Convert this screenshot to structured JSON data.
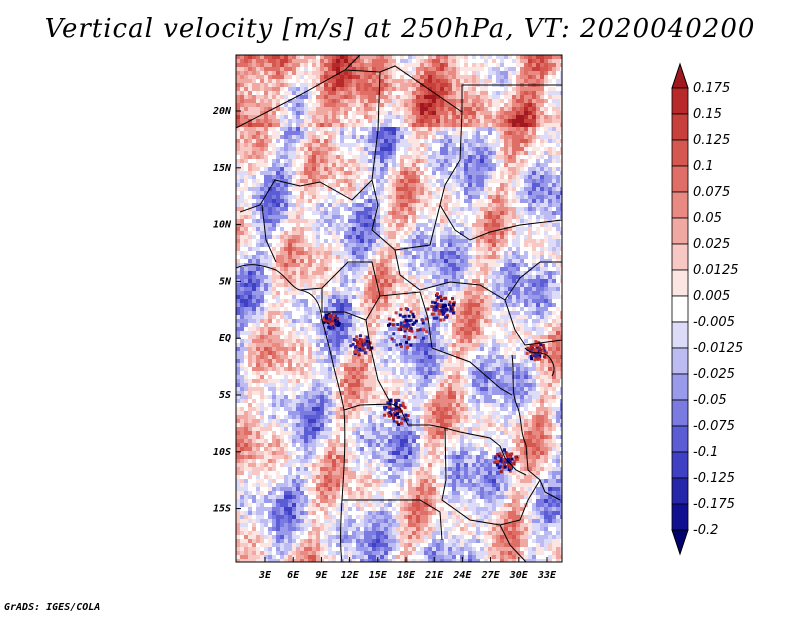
{
  "title": "Vertical velocity [m/s] at 250hPa, VT: 2020040200",
  "credit": "GrADS: IGES/COLA",
  "map": {
    "variable": "Vertical velocity",
    "units": "m/s",
    "level": "250hPa",
    "valid_time": "2020040200",
    "lat_labels": [
      "20N",
      "15N",
      "10N",
      "5N",
      "EQ",
      "5S",
      "10S",
      "15S"
    ],
    "lon_labels": [
      "3E",
      "6E",
      "9E",
      "12E",
      "15E",
      "18E",
      "21E",
      "24E",
      "27E",
      "30E",
      "33E"
    ]
  },
  "colorbar": {
    "labels": [
      "0.175",
      "0.15",
      "0.125",
      "0.1",
      "0.075",
      "0.05",
      "0.025",
      "0.0125",
      "0.005",
      "-0.005",
      "-0.0125",
      "-0.025",
      "-0.05",
      "-0.075",
      "-0.1",
      "-0.125",
      "-0.175",
      "-0.2"
    ],
    "colors": [
      "#a01820",
      "#b82a2a",
      "#c8403c",
      "#d45750",
      "#de6e66",
      "#e88a82",
      "#f0a8a2",
      "#f7c8c4",
      "#fbe6e4",
      "#ffffff",
      "#dcdcf8",
      "#bcbcf2",
      "#9a9aea",
      "#7a7ae0",
      "#5c5cd4",
      "#4040c4",
      "#2626aa",
      "#101090",
      "#00006e"
    ]
  }
}
